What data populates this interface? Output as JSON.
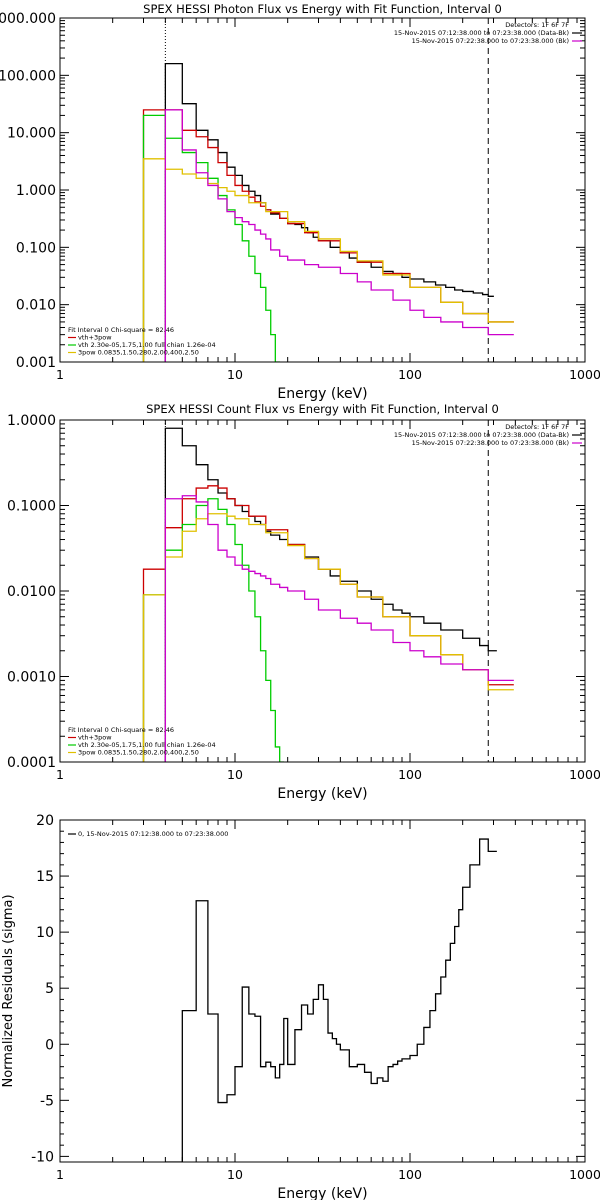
{
  "chart_data": [
    {
      "type": "line",
      "scale": "log-log",
      "title": "SPEX HESSI Photon Flux vs Energy with Fit Function, Interval 0",
      "xlabel": "Energy (keV)",
      "ylabel": "",
      "xlim": [
        1,
        1000
      ],
      "ylim": [
        0.001,
        1000
      ],
      "xticks": [
        "1",
        "10",
        "100",
        "1000"
      ],
      "yticks": [
        "0.001",
        "0.010",
        "0.100",
        "1.000",
        "10.000",
        "100.000",
        "1000.000"
      ],
      "header_right": [
        "Detectors: 1F 6F 7F",
        "15-Nov-2015 07:12:38.000 to 07:23:38.000 (Data-Bk)",
        "15-Nov-2015 07:22:38.000 to 07:23:38.000 (Bk)"
      ],
      "legend_left": [
        "Fit Interval 0   Chi-square = 82.46",
        "vth+3pow",
        "vth 2.30e-05,1.75,1.00  full chian 1.26e-04",
        "3pow 0.0835,1.50,280,2.00,400,2.50"
      ],
      "vlines": [
        {
          "x": 4.0,
          "style": "dotted"
        },
        {
          "x": 280,
          "style": "dashed"
        }
      ],
      "series": [
        {
          "name": "Data-Bk",
          "color": "#000000",
          "x": [
            4,
            5,
            6,
            7,
            8,
            9,
            10,
            11,
            12,
            13,
            14,
            15,
            16,
            18,
            20,
            22,
            24,
            26,
            28,
            30,
            35,
            40,
            45,
            50,
            60,
            70,
            80,
            90,
            100,
            120,
            140,
            160,
            180,
            200,
            230,
            260,
            280
          ],
          "y": [
            160,
            32,
            11,
            7.5,
            4.5,
            2.5,
            1.8,
            1.2,
            0.95,
            0.8,
            0.6,
            0.45,
            0.38,
            0.32,
            0.26,
            0.25,
            0.22,
            0.18,
            0.15,
            0.13,
            0.1,
            0.08,
            0.065,
            0.055,
            0.045,
            0.038,
            0.035,
            0.03,
            0.028,
            0.025,
            0.022,
            0.02,
            0.018,
            0.017,
            0.016,
            0.015,
            0.014
          ]
        },
        {
          "name": "vth+3pow",
          "color": "#cc0000",
          "x": [
            3,
            4,
            5,
            6,
            7,
            8,
            9,
            10,
            11,
            12,
            13,
            14,
            15,
            16,
            18,
            20,
            25,
            30,
            40,
            50,
            70,
            100,
            150,
            200,
            280
          ],
          "y": [
            25,
            25,
            11,
            8.5,
            5.5,
            3.0,
            1.8,
            1.2,
            0.95,
            0.75,
            0.62,
            0.52,
            0.45,
            0.4,
            0.32,
            0.26,
            0.18,
            0.13,
            0.08,
            0.055,
            0.035,
            0.02,
            0.011,
            0.007,
            0.005
          ]
        },
        {
          "name": "vth",
          "color": "#00cc00",
          "x": [
            3,
            4,
            5,
            6,
            7,
            8,
            9,
            10,
            11,
            12,
            13,
            14,
            15,
            16,
            17
          ],
          "y": [
            20,
            8,
            4.5,
            3,
            1.6,
            0.8,
            0.45,
            0.25,
            0.13,
            0.07,
            0.035,
            0.02,
            0.008,
            0.003,
            0.001
          ]
        },
        {
          "name": "3pow",
          "color": "#e0c000",
          "x": [
            3,
            4,
            5,
            6,
            7,
            8,
            9,
            10,
            12,
            15,
            20,
            25,
            30,
            40,
            50,
            70,
            100,
            150,
            200,
            280
          ],
          "y": [
            3.5,
            2.3,
            1.9,
            1.6,
            1.3,
            1.1,
            0.95,
            0.8,
            0.6,
            0.42,
            0.28,
            0.19,
            0.14,
            0.085,
            0.058,
            0.033,
            0.02,
            0.011,
            0.007,
            0.005
          ]
        },
        {
          "name": "Bk",
          "color": "#cc00cc",
          "x": [
            4,
            5,
            6,
            7,
            8,
            9,
            10,
            11,
            12,
            13,
            14,
            15,
            16,
            18,
            20,
            25,
            30,
            40,
            50,
            60,
            80,
            100,
            120,
            150,
            200,
            280
          ],
          "y": [
            25,
            5.0,
            2.0,
            1.2,
            0.7,
            0.42,
            0.33,
            0.28,
            0.25,
            0.2,
            0.17,
            0.14,
            0.09,
            0.07,
            0.06,
            0.05,
            0.045,
            0.035,
            0.025,
            0.018,
            0.012,
            0.008,
            0.006,
            0.005,
            0.004,
            0.003
          ]
        }
      ]
    },
    {
      "type": "line",
      "scale": "log-log",
      "title": "SPEX HESSI Count Flux vs Energy with Fit Function, Interval 0",
      "xlabel": "Energy (keV)",
      "ylabel": "",
      "xlim": [
        1,
        1000
      ],
      "ylim": [
        0.0001,
        1.0
      ],
      "xticks": [
        "1",
        "10",
        "100",
        "1000"
      ],
      "yticks": [
        "0.0001",
        "0.0010",
        "0.0100",
        "0.1000",
        "1.0000"
      ],
      "header_right": [
        "Detectors: 1F 6F 7F",
        "15-Nov-2015 07:12:38.000 to 07:23:38.000 (Data-Bk)",
        "15-Nov-2015 07:22:38.000 to 07:23:38.000 (Bk)"
      ],
      "legend_left": [
        "Fit Interval 0   Chi-square = 82.46",
        "vth+3pow",
        "vth 2.30e-05,1.75,1.00  full chian 1.26e-04",
        "3pow 0.0835,1.50,280,2.00,400,2.50"
      ],
      "vlines": [
        {
          "x": 4.0,
          "style": "dotted"
        },
        {
          "x": 280,
          "style": "dashed"
        }
      ],
      "series": [
        {
          "name": "Data-Bk",
          "color": "#000000",
          "x": [
            4,
            5,
            6,
            7,
            8,
            9,
            10,
            11,
            12,
            13,
            14,
            15,
            16,
            18,
            20,
            25,
            30,
            35,
            40,
            50,
            60,
            70,
            80,
            90,
            100,
            120,
            150,
            200,
            250,
            280
          ],
          "y": [
            0.8,
            0.5,
            0.3,
            0.2,
            0.14,
            0.12,
            0.1,
            0.085,
            0.075,
            0.065,
            0.06,
            0.05,
            0.045,
            0.04,
            0.035,
            0.025,
            0.018,
            0.015,
            0.013,
            0.01,
            0.008,
            0.007,
            0.006,
            0.0055,
            0.005,
            0.0042,
            0.0035,
            0.0028,
            0.0023,
            0.002
          ]
        },
        {
          "name": "vth+3pow",
          "color": "#cc0000",
          "x": [
            3,
            4,
            5,
            6,
            7,
            8,
            9,
            10,
            12,
            15,
            20,
            25,
            30,
            40,
            50,
            70,
            100,
            150,
            200,
            280
          ],
          "y": [
            0.018,
            0.055,
            0.12,
            0.16,
            0.17,
            0.16,
            0.12,
            0.1,
            0.075,
            0.052,
            0.035,
            0.024,
            0.018,
            0.012,
            0.0085,
            0.005,
            0.003,
            0.0018,
            0.0012,
            0.0008
          ]
        },
        {
          "name": "vth",
          "color": "#00cc00",
          "x": [
            3,
            4,
            5,
            6,
            7,
            8,
            9,
            10,
            11,
            12,
            13,
            14,
            15,
            16,
            17,
            18
          ],
          "y": [
            0.009,
            0.03,
            0.06,
            0.1,
            0.12,
            0.09,
            0.06,
            0.035,
            0.02,
            0.01,
            0.005,
            0.002,
            0.0009,
            0.0004,
            0.00015,
            0.0001
          ]
        },
        {
          "name": "3pow",
          "color": "#e0c000",
          "x": [
            3,
            4,
            5,
            6,
            7,
            8,
            9,
            10,
            12,
            15,
            20,
            25,
            30,
            40,
            50,
            70,
            100,
            150,
            200,
            280
          ],
          "y": [
            0.009,
            0.025,
            0.05,
            0.07,
            0.08,
            0.08,
            0.075,
            0.07,
            0.06,
            0.048,
            0.034,
            0.024,
            0.018,
            0.012,
            0.0085,
            0.005,
            0.003,
            0.0018,
            0.0012,
            0.0007
          ]
        },
        {
          "name": "Bk",
          "color": "#cc00cc",
          "x": [
            4,
            5,
            6,
            7,
            8,
            9,
            10,
            11,
            12,
            13,
            14,
            15,
            16,
            18,
            20,
            25,
            30,
            40,
            50,
            60,
            80,
            100,
            120,
            150,
            200,
            280
          ],
          "y": [
            0.12,
            0.13,
            0.11,
            0.06,
            0.03,
            0.025,
            0.02,
            0.018,
            0.017,
            0.016,
            0.015,
            0.014,
            0.012,
            0.011,
            0.01,
            0.008,
            0.006,
            0.0048,
            0.0042,
            0.0035,
            0.0025,
            0.002,
            0.0017,
            0.0014,
            0.0012,
            0.0009
          ]
        }
      ]
    },
    {
      "type": "line",
      "scale": "log-linear",
      "title": "",
      "xlabel": "Energy (keV)",
      "ylabel": "Normalized Residuals (sigma)",
      "xlim": [
        1,
        1000
      ],
      "ylim": [
        -10.5,
        20
      ],
      "xticks": [
        "1",
        "10",
        "100",
        "1000"
      ],
      "yticks": [
        "-10",
        "-5",
        "0",
        "5",
        "10",
        "15",
        "20"
      ],
      "legend_left": [
        "0, 15-Nov-2015 07:12:38.000 to 07:23:38.000"
      ],
      "series": [
        {
          "name": "0, 15-Nov-2015 07:12:38.000 to 07:23:38.000",
          "color": "#000000",
          "x": [
            4,
            5,
            6,
            7,
            8,
            9,
            10,
            11,
            12,
            13,
            14,
            15,
            16,
            17,
            18,
            19,
            20,
            22,
            24,
            26,
            28,
            30,
            32,
            34,
            36,
            38,
            40,
            45,
            50,
            55,
            60,
            65,
            70,
            75,
            80,
            85,
            90,
            100,
            110,
            120,
            130,
            140,
            150,
            160,
            170,
            180,
            190,
            200,
            220,
            250,
            280
          ],
          "y": [
            -10.5,
            3.0,
            12.8,
            2.7,
            -5.2,
            -4.5,
            -2.0,
            5.1,
            2.7,
            2.5,
            -2.0,
            -1.6,
            -2.0,
            -3.0,
            -1.8,
            2.3,
            -1.8,
            1.3,
            3.5,
            2.7,
            4.0,
            5.3,
            4.0,
            1.0,
            0.5,
            0.0,
            -0.5,
            -2.0,
            -1.8,
            -2.5,
            -3.5,
            -3.0,
            -3.3,
            -2.0,
            -1.8,
            -1.5,
            -1.3,
            -1.0,
            0.0,
            1.5,
            3.0,
            4.5,
            6.0,
            7.5,
            9.0,
            10.5,
            12.0,
            14.0,
            16.0,
            18.3,
            17.2
          ]
        }
      ]
    }
  ]
}
